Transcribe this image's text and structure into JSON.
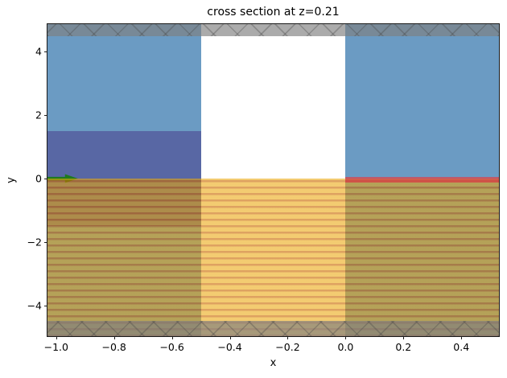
{
  "figure": {
    "title": "cross section at z=0.21",
    "xlabel": "x",
    "ylabel": "y"
  },
  "colors": {
    "blue": "rgba(70,130,180,0.8)",
    "purple": "rgba(72,61,139,0.55)",
    "orange_bg": "rgba(234,166,10,0.58)",
    "orange_stripe": "rgba(202,105,0,0.62)",
    "red": "rgba(225,60,70,0.68)",
    "gray_band": "rgba(128,128,128,0.66)",
    "hatch_line": "rgba(70,70,70,0.32)",
    "green_arrow": "#1f7a1f",
    "axis": "#1a1a1a"
  },
  "chart_data": {
    "type": "area",
    "title": "cross section at z=0.21",
    "xlabel": "x",
    "ylabel": "y",
    "xlim": [
      -1.03,
      0.53
    ],
    "ylim": [
      -4.97,
      4.87
    ],
    "grid": false,
    "legend": false,
    "x_ticks": {
      "values": [
        -1.0,
        -0.8,
        -0.6,
        -0.4,
        -0.2,
        0.0,
        0.2,
        0.4
      ],
      "labels": [
        "−1.0",
        "−0.8",
        "−0.6",
        "−0.4",
        "−0.2",
        "0.0",
        "0.2",
        "0.4"
      ]
    },
    "y_ticks": {
      "values": [
        4,
        2,
        0,
        -2,
        -4
      ],
      "labels": [
        "4",
        "2",
        "0",
        "−2",
        "−4"
      ]
    },
    "regions": [
      {
        "name": "blue-column-left",
        "x": [
          -1.03,
          -0.5
        ],
        "y": [
          -4.97,
          4.87
        ],
        "fill": "blue",
        "z": 1
      },
      {
        "name": "blue-column-right",
        "x": [
          0.0,
          0.53
        ],
        "y": [
          -4.97,
          4.87
        ],
        "fill": "blue",
        "z": 1
      },
      {
        "name": "purple-slab-left",
        "x": [
          -1.03,
          -0.5
        ],
        "y": [
          -1.5,
          1.5
        ],
        "fill": "purple",
        "z": 2
      },
      {
        "name": "orange-striped-lower-halfspace",
        "x": [
          -1.03,
          0.53
        ],
        "y": [
          -4.97,
          0.0
        ],
        "fill": "orange-striped",
        "z": 4
      },
      {
        "name": "red-thin-layer-right",
        "x": [
          0.0,
          0.53
        ],
        "y": [
          -0.12,
          0.04
        ],
        "fill": "red",
        "z": 5
      },
      {
        "name": "gray-hatched-band-top",
        "x": [
          -1.03,
          0.53
        ],
        "y": [
          4.5,
          4.87
        ],
        "fill": "gray-hatched",
        "z": 6
      },
      {
        "name": "gray-hatched-band-bottom",
        "x": [
          -1.03,
          0.53
        ],
        "y": [
          -4.97,
          -4.5
        ],
        "fill": "gray-hatched",
        "z": 6
      }
    ],
    "arrow": {
      "name": "green-arrow",
      "y": 0.0,
      "x_tail": -1.03,
      "x_tip": -0.925,
      "direction": "+x"
    }
  }
}
